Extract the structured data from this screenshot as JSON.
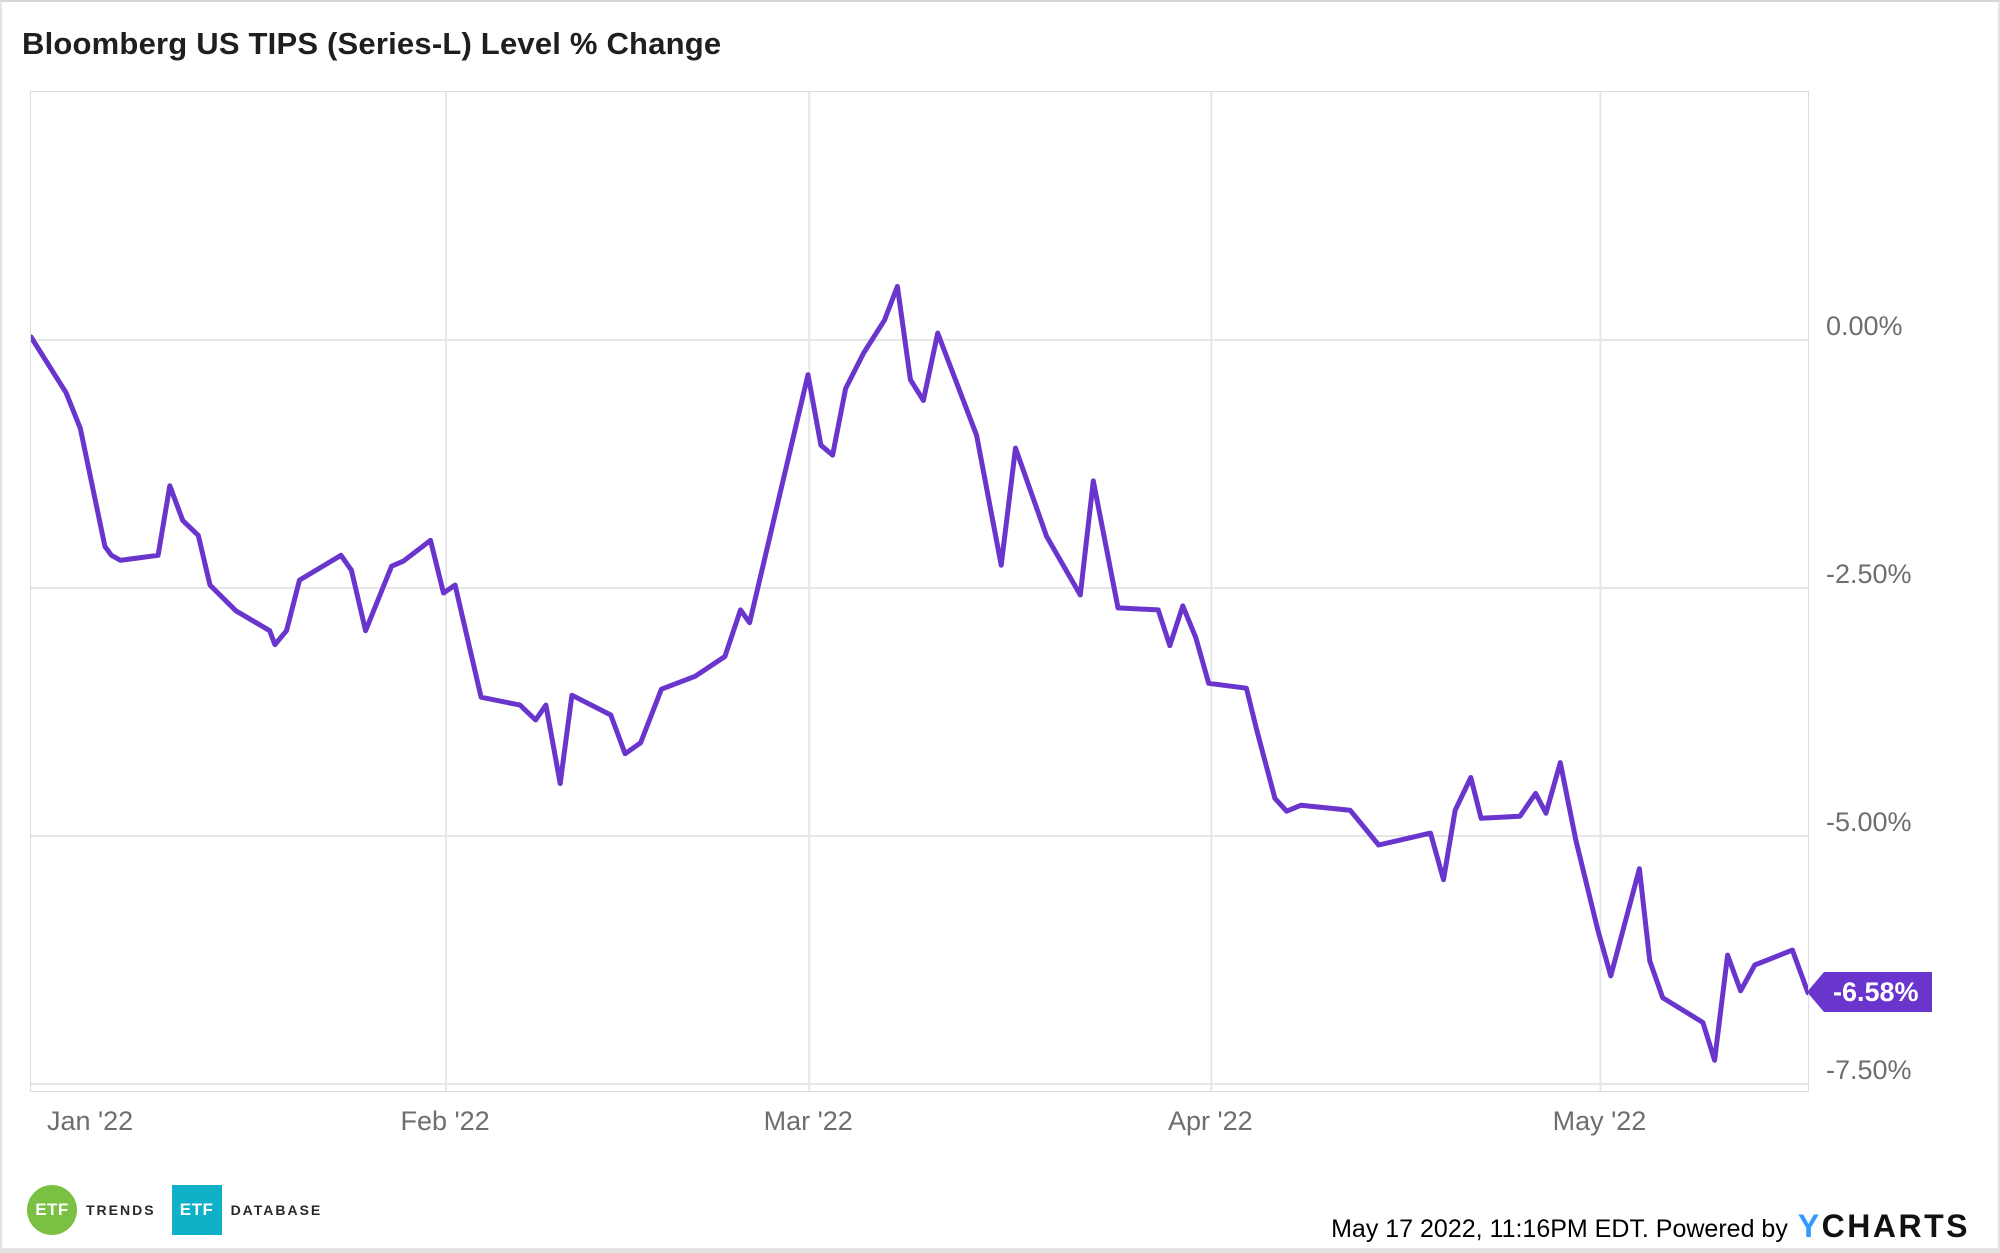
{
  "title": "Bloomberg US TIPS (Series-L) Level % Change",
  "colors": {
    "line": "#6935CD",
    "badge_bg": "#6935CD",
    "badge_text": "#FFFFFF",
    "grid": "#E6E6E6",
    "plot_border": "#DCDCDC",
    "axis_text": "#6E6E6E",
    "title_text": "#1F1F1F",
    "etf_trends_green": "#7AC143",
    "etf_database_teal": "#0FB1C8",
    "ycharts_blue": "#3399FF",
    "ycharts_black": "#111111"
  },
  "chart_data": {
    "type": "line",
    "title": "Bloomberg US TIPS (Series-L) Level % Change",
    "unit": "%",
    "grid": true,
    "legend_position": "none",
    "x_axis": {
      "unit": "calendar days from chart start (Dec 31 2021)",
      "domain": [
        0,
        137
      ],
      "ticks": [
        {
          "label": "Jan '22",
          "day": 1
        },
        {
          "label": "Feb '22",
          "day": 32
        },
        {
          "label": "Mar '22",
          "day": 60
        },
        {
          "label": "Apr '22",
          "day": 91
        },
        {
          "label": "May '22",
          "day": 121
        }
      ]
    },
    "y_axis": {
      "side": "right",
      "range_top": 2.5,
      "range_bottom": -7.57,
      "ticks": [
        {
          "label": "0.00%",
          "value": 0
        },
        {
          "label": "-2.50%",
          "value": -2.5
        },
        {
          "label": "-5.00%",
          "value": -5
        },
        {
          "label": "-7.50%",
          "value": -7.5
        }
      ]
    },
    "last_point_label": "-6.58%",
    "points": [
      [
        0,
        0.03
      ],
      [
        2.7,
        -0.53
      ],
      [
        3.8,
        -0.89
      ],
      [
        5.7,
        -2.08
      ],
      [
        6.2,
        -2.17
      ],
      [
        6.9,
        -2.22
      ],
      [
        9.8,
        -2.17
      ],
      [
        10.7,
        -1.47
      ],
      [
        11.7,
        -1.82
      ],
      [
        12.9,
        -1.97
      ],
      [
        13.8,
        -2.47
      ],
      [
        15.8,
        -2.73
      ],
      [
        18.4,
        -2.93
      ],
      [
        18.8,
        -3.07
      ],
      [
        19.7,
        -2.93
      ],
      [
        20.7,
        -2.42
      ],
      [
        23.9,
        -2.17
      ],
      [
        24.7,
        -2.32
      ],
      [
        25.8,
        -2.93
      ],
      [
        27.8,
        -2.28
      ],
      [
        28.7,
        -2.23
      ],
      [
        30.8,
        -2.02
      ],
      [
        31.8,
        -2.55
      ],
      [
        32.7,
        -2.47
      ],
      [
        34.7,
        -3.6
      ],
      [
        37.7,
        -3.68
      ],
      [
        38.9,
        -3.83
      ],
      [
        39.7,
        -3.68
      ],
      [
        40.8,
        -4.47
      ],
      [
        41.7,
        -3.58
      ],
      [
        44.7,
        -3.78
      ],
      [
        45.8,
        -4.17
      ],
      [
        47,
        -4.06
      ],
      [
        48.6,
        -3.52
      ],
      [
        51.2,
        -3.39
      ],
      [
        53.5,
        -3.19
      ],
      [
        54.7,
        -2.72
      ],
      [
        55.4,
        -2.85
      ],
      [
        59.9,
        -0.35
      ],
      [
        60.9,
        -1.06
      ],
      [
        61.8,
        -1.16
      ],
      [
        62.8,
        -0.49
      ],
      [
        64.2,
        -0.13
      ],
      [
        65.8,
        0.2
      ],
      [
        66.8,
        0.54
      ],
      [
        67.8,
        -0.4
      ],
      [
        68.8,
        -0.61
      ],
      [
        69.9,
        0.07
      ],
      [
        72.9,
        -0.96
      ],
      [
        74.8,
        -2.27
      ],
      [
        75.9,
        -1.09
      ],
      [
        78.3,
        -1.98
      ],
      [
        80.9,
        -2.57
      ],
      [
        81.9,
        -1.42
      ],
      [
        83.8,
        -2.7
      ],
      [
        86.9,
        -2.72
      ],
      [
        87.8,
        -3.08
      ],
      [
        88.8,
        -2.68
      ],
      [
        89.8,
        -3.0
      ],
      [
        90.8,
        -3.46
      ],
      [
        93.7,
        -3.51
      ],
      [
        94.5,
        -3.93
      ],
      [
        95.9,
        -4.62
      ],
      [
        96.8,
        -4.75
      ],
      [
        97.9,
        -4.69
      ],
      [
        101.7,
        -4.74
      ],
      [
        103.9,
        -5.09
      ],
      [
        107.9,
        -4.97
      ],
      [
        108.9,
        -5.44
      ],
      [
        109.8,
        -4.74
      ],
      [
        111,
        -4.41
      ],
      [
        111.8,
        -4.82
      ],
      [
        114.8,
        -4.8
      ],
      [
        116,
        -4.57
      ],
      [
        116.8,
        -4.77
      ],
      [
        117.9,
        -4.26
      ],
      [
        119.1,
        -5.04
      ],
      [
        120.8,
        -5.95
      ],
      [
        121.8,
        -6.41
      ],
      [
        124,
        -5.33
      ],
      [
        124.8,
        -6.26
      ],
      [
        125.8,
        -6.63
      ],
      [
        128.9,
        -6.88
      ],
      [
        129.8,
        -7.26
      ],
      [
        130.8,
        -6.2
      ],
      [
        131.8,
        -6.56
      ],
      [
        132.9,
        -6.3
      ],
      [
        135.8,
        -6.15
      ],
      [
        137,
        -6.58
      ]
    ]
  },
  "footer": {
    "etf_trends": {
      "icon_text": "ETF",
      "label": "TRENDS"
    },
    "etf_database": {
      "icon_text": "ETF",
      "label": "DATABASE"
    },
    "timestamp": "May 17 2022, 11:16PM EDT. Powered by",
    "ycharts_y": "Y",
    "ycharts_rest": "CHARTS"
  }
}
